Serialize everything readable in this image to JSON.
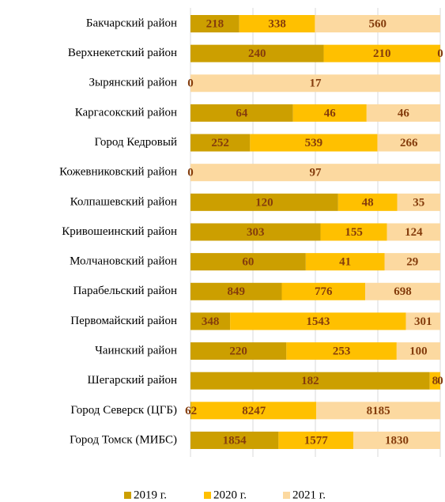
{
  "chart_data": {
    "type": "stacked-bar-100",
    "categories": [
      "Бакчарский район",
      "Верхнекетский район",
      "Зырянский район",
      "Каргасокский район",
      "Город Кедровый",
      "Кожевниковский район",
      "Колпашевский район",
      "Кривошеинский район",
      "Молчановский район",
      "Парабельский район",
      "Первомайский район",
      "Чаинский район",
      "Шегарский район",
      "Город Северск (ЦГБ)",
      "Город Томск (МИБС)"
    ],
    "series": [
      {
        "name": "2019 г.",
        "color": "#cc9f00",
        "values": [
          218,
          240,
          0,
          64,
          252,
          0,
          120,
          303,
          60,
          849,
          348,
          220,
          182,
          62,
          1854
        ]
      },
      {
        "name": "2020 г.",
        "color": "#ffc000",
        "values": [
          338,
          210,
          null,
          46,
          539,
          null,
          48,
          155,
          41,
          776,
          1543,
          253,
          8,
          8247,
          1577
        ]
      },
      {
        "name": "2021 г.",
        "color": "#fcd9a0",
        "values": [
          560,
          0,
          17,
          46,
          266,
          97,
          35,
          124,
          29,
          698,
          301,
          100,
          0,
          8185,
          1830
        ]
      }
    ],
    "xlim": [
      0,
      100
    ],
    "xticks": [
      0,
      25,
      50,
      75,
      100
    ],
    "grid": true,
    "legend": "bottom"
  }
}
